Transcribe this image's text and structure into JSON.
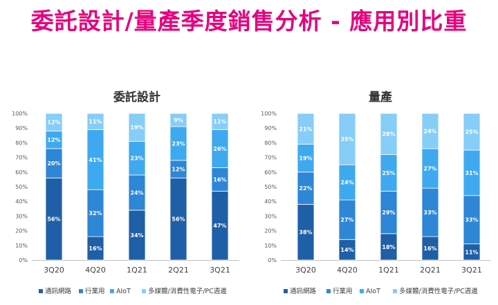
{
  "page": {
    "title": "委託設計/量產季度銷售分析 - 應用別比重"
  },
  "chart_data": [
    {
      "type": "bar",
      "stacked": true,
      "title": "委託設計",
      "categories": [
        "3Q20",
        "4Q20",
        "1Q21",
        "2Q21",
        "3Q21"
      ],
      "yticks": [
        "0%",
        "10%",
        "20%",
        "30%",
        "40%",
        "50%",
        "60%",
        "70%",
        "80%",
        "90%",
        "100%"
      ],
      "ylim": [
        0,
        100
      ],
      "grid": false,
      "legend": "bottom",
      "series": [
        {
          "name": "通訊網路",
          "color": "#1F5FA8",
          "values": [
            56,
            16,
            34,
            56,
            47
          ],
          "labels": [
            "56%",
            "16%",
            "34%",
            "56%",
            "47%"
          ]
        },
        {
          "name": "行業用",
          "color": "#2E86D6",
          "values": [
            20,
            32,
            24,
            12,
            16
          ],
          "labels": [
            "20%",
            "32%",
            "24%",
            "12%",
            "16%"
          ]
        },
        {
          "name": "AIoT",
          "color": "#3FA9F0",
          "values": [
            12,
            41,
            23,
            23,
            26
          ],
          "labels": [
            "12%",
            "41%",
            "23%",
            "23%",
            "26%"
          ]
        },
        {
          "name": "多媒體/消費性電子/PC週邊",
          "color": "#86CDF7",
          "values": [
            12,
            11,
            19,
            9,
            11
          ],
          "labels": [
            "12%",
            "11%",
            "19%",
            "9%",
            "11%"
          ]
        }
      ]
    },
    {
      "type": "bar",
      "stacked": true,
      "title": "量產",
      "categories": [
        "3Q20",
        "4Q20",
        "1Q21",
        "2Q21",
        "3Q21"
      ],
      "yticks": [
        "0%",
        "10%",
        "20%",
        "30%",
        "40%",
        "50%",
        "60%",
        "70%",
        "80%",
        "90%",
        "100%"
      ],
      "ylim": [
        0,
        100
      ],
      "grid": false,
      "legend": "bottom",
      "series": [
        {
          "name": "通訊網路",
          "color": "#1F5FA8",
          "values": [
            38,
            14,
            18,
            16,
            11
          ],
          "labels": [
            "38%",
            "14%",
            "18%",
            "16%",
            "11%"
          ]
        },
        {
          "name": "行業用",
          "color": "#2E86D6",
          "values": [
            22,
            27,
            29,
            33,
            33
          ],
          "labels": [
            "22%",
            "27%",
            "29%",
            "33%",
            "33%"
          ]
        },
        {
          "name": "AIoT",
          "color": "#3FA9F0",
          "values": [
            19,
            24,
            25,
            27,
            31
          ],
          "labels": [
            "19%",
            "24%",
            "25%",
            "27%",
            "31%"
          ]
        },
        {
          "name": "多媒體/消費性電子/PC週邊",
          "color": "#86CDF7",
          "values": [
            21,
            35,
            28,
            24,
            25
          ],
          "labels": [
            "21%",
            "35%",
            "28%",
            "24%",
            "25%"
          ]
        }
      ]
    }
  ]
}
